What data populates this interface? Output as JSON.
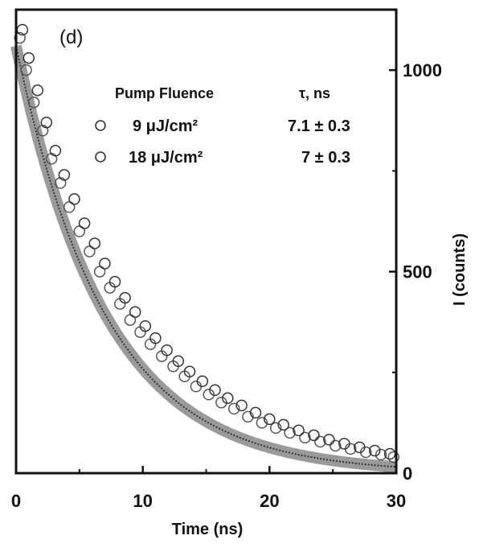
{
  "chart_data": {
    "type": "scatter",
    "panel_label": "(d)",
    "xlabel": "Time (ns)",
    "ylabel": "I (counts)",
    "xlim": [
      0,
      30
    ],
    "ylim": [
      0,
      1150
    ],
    "x_ticks": [
      0,
      10,
      20,
      30
    ],
    "x_tick_labels": [
      "0",
      "10",
      "20",
      "30"
    ],
    "y_ticks": [
      0,
      500,
      1000
    ],
    "y_tick_labels": [
      "0",
      "500",
      "1000"
    ],
    "y_axis_side": "right",
    "grid": false,
    "legend": {
      "placement": "top-center",
      "header_left": "Pump Fluence",
      "header_right": "τ, ns",
      "entries": [
        {
          "label": "9 μJ/cm²",
          "tau": "7.1 ± 0.3"
        },
        {
          "label": "18 μJ/cm²",
          "tau": "7 ± 0.3"
        }
      ]
    },
    "series": [
      {
        "name": "9 μJ/cm²",
        "marker": "open-circle",
        "x": [
          0.3,
          0.8,
          1.4,
          2.1,
          2.8,
          3.5,
          4.2,
          5.0,
          5.8,
          6.6,
          7.4,
          8.2,
          9.0,
          9.8,
          10.6,
          11.5,
          12.4,
          13.3,
          14.2,
          15.2,
          16.2,
          17.2,
          18.3,
          19.4,
          20.5,
          21.6,
          22.8,
          24.0,
          25.2,
          26.4,
          27.6,
          28.8,
          29.8
        ],
        "y": [
          1080,
          1000,
          920,
          850,
          780,
          720,
          660,
          600,
          550,
          500,
          460,
          420,
          380,
          350,
          320,
          290,
          265,
          240,
          215,
          195,
          175,
          160,
          140,
          125,
          112,
          100,
          88,
          78,
          68,
          60,
          52,
          46,
          40
        ]
      },
      {
        "name": "18 μJ/cm²",
        "marker": "open-circle",
        "x": [
          0.5,
          1.0,
          1.7,
          2.4,
          3.1,
          3.8,
          4.6,
          5.4,
          6.2,
          7.0,
          7.8,
          8.6,
          9.4,
          10.2,
          11.0,
          11.9,
          12.8,
          13.7,
          14.7,
          15.7,
          16.7,
          17.8,
          18.9,
          20.0,
          21.1,
          22.3,
          23.5,
          24.7,
          25.9,
          27.1,
          28.3,
          29.5
        ],
        "y": [
          1100,
          1030,
          950,
          870,
          800,
          740,
          680,
          620,
          570,
          520,
          475,
          435,
          400,
          365,
          335,
          305,
          278,
          252,
          228,
          206,
          186,
          168,
          150,
          134,
          120,
          106,
          94,
          83,
          73,
          64,
          56,
          48
        ]
      }
    ],
    "fit_curve": {
      "amplitude": 1060,
      "tau": 7.1
    }
  }
}
